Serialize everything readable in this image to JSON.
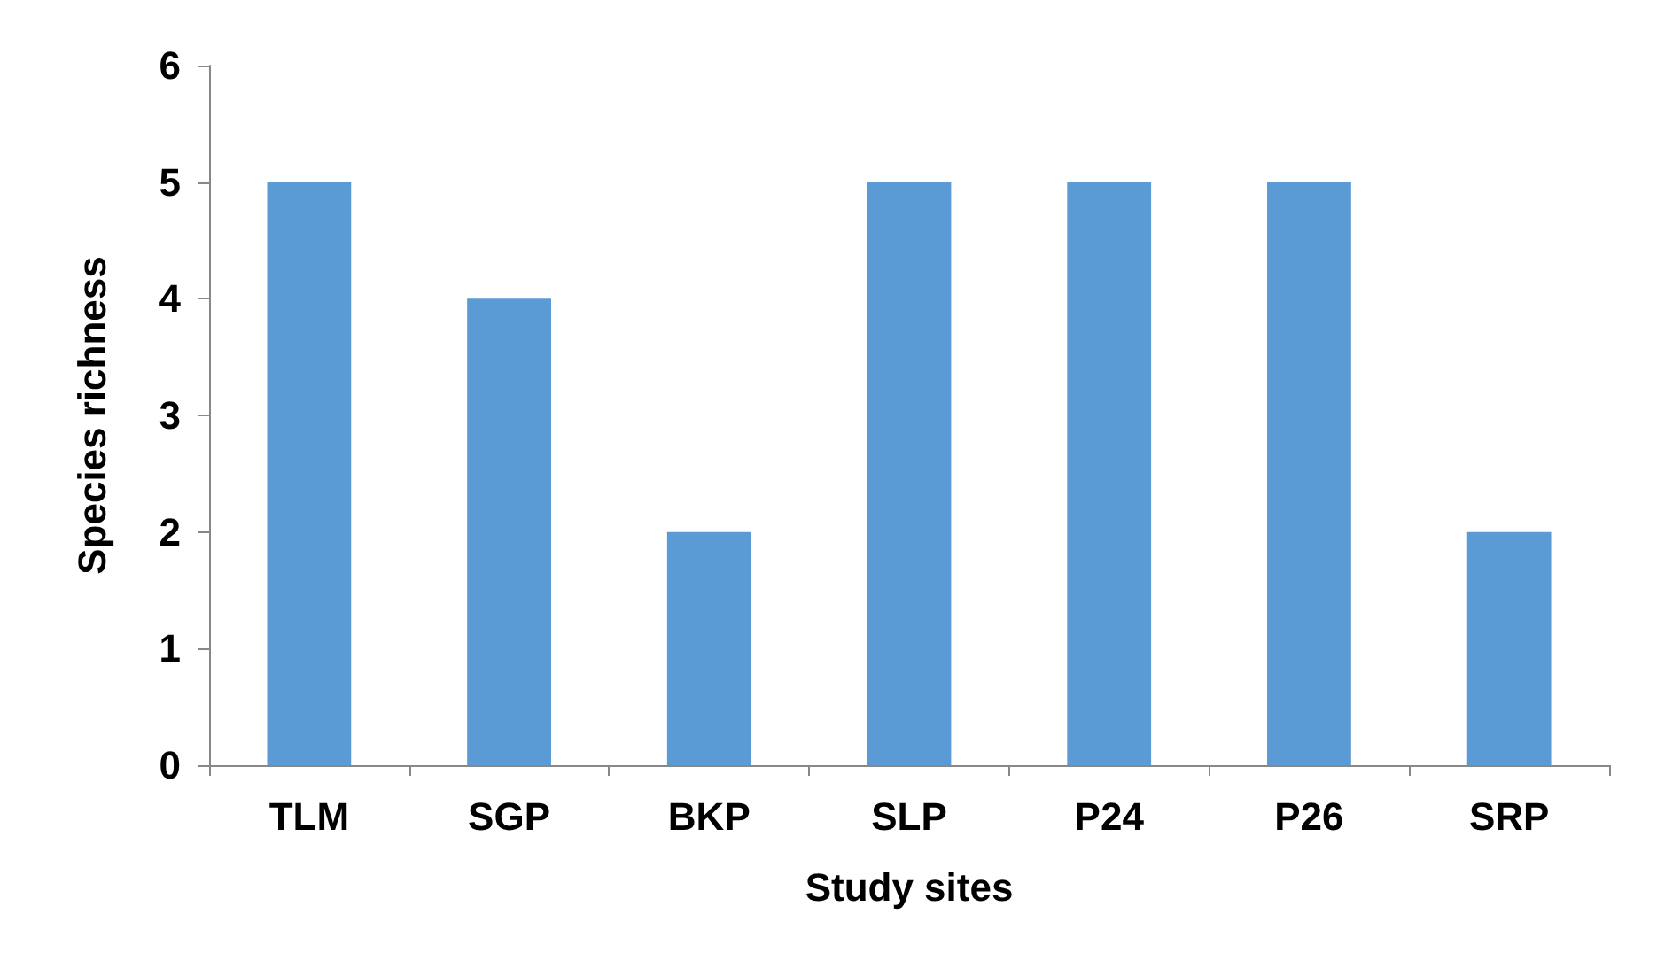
{
  "chart_data": {
    "type": "bar",
    "xlabel": "Study sites",
    "ylabel": "Species richness",
    "categories": [
      "TLM",
      "SGP",
      "BKP",
      "SLP",
      "P24",
      "P26",
      "SRP"
    ],
    "values": [
      5,
      4,
      2,
      5,
      5,
      5,
      2
    ],
    "color": "#5b9bd5",
    "ylim": [
      0,
      6
    ],
    "yticks": [
      0,
      1,
      2,
      3,
      4,
      5,
      6
    ],
    "grid": false
  }
}
